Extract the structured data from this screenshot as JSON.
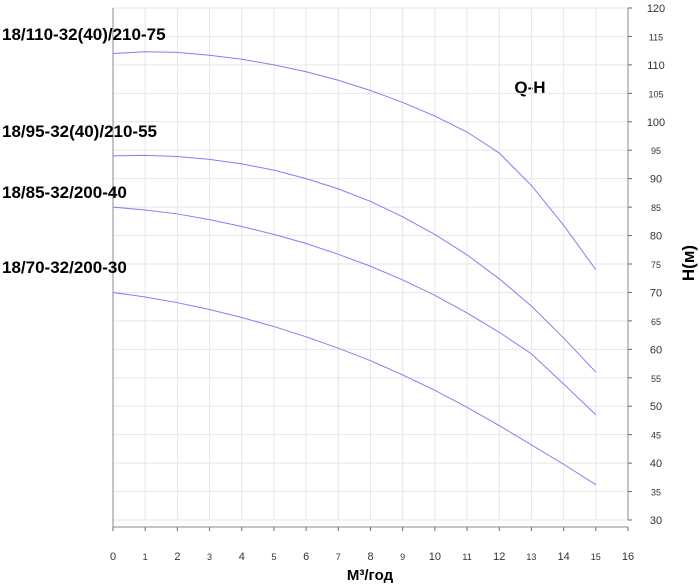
{
  "chart_data": {
    "type": "line",
    "title": "Q-H",
    "x_label": "М³/год",
    "y_label": "Н(м)",
    "x": [
      0,
      1,
      2,
      3,
      4,
      5,
      6,
      7,
      8,
      9,
      10,
      11,
      12,
      13,
      14,
      15
    ],
    "xlim": [
      0,
      16
    ],
    "xticks": [
      0,
      1,
      2,
      3,
      4,
      5,
      6,
      7,
      8,
      9,
      10,
      11,
      12,
      13,
      14,
      15,
      16
    ],
    "ylim": [
      30,
      120
    ],
    "yticks": [
      30,
      35,
      40,
      45,
      50,
      55,
      60,
      65,
      70,
      75,
      80,
      85,
      90,
      95,
      100,
      105,
      110,
      115,
      120
    ],
    "grid": true,
    "series": [
      {
        "name": "18/110-32(40)/210-75",
        "color": "#8080f0",
        "values": [
          112,
          112.3,
          112.2,
          111.7,
          111,
          110,
          108.8,
          107.3,
          105.5,
          103.4,
          101,
          98.2,
          94.5,
          88.8,
          81.8,
          74
        ]
      },
      {
        "name": "18/95-32(40)/210-55",
        "color": "#8080f0",
        "values": [
          94,
          94.1,
          93.9,
          93.4,
          92.6,
          91.5,
          90,
          88.2,
          86,
          83.3,
          80.2,
          76.6,
          72.4,
          67.6,
          62,
          56
        ]
      },
      {
        "name": "18/85-32/200-40",
        "color": "#8080f0",
        "values": [
          85,
          84.5,
          83.8,
          82.8,
          81.6,
          80.2,
          78.6,
          76.7,
          74.6,
          72.2,
          69.5,
          66.4,
          63,
          59.2,
          53.9,
          48.5
        ]
      },
      {
        "name": "18/70-32/200-30",
        "color": "#8080f0",
        "values": [
          70,
          69.2,
          68.2,
          67,
          65.6,
          64,
          62.2,
          60.2,
          58,
          55.5,
          52.8,
          49.8,
          46.6,
          43.2,
          39.8,
          36.2
        ]
      }
    ]
  }
}
